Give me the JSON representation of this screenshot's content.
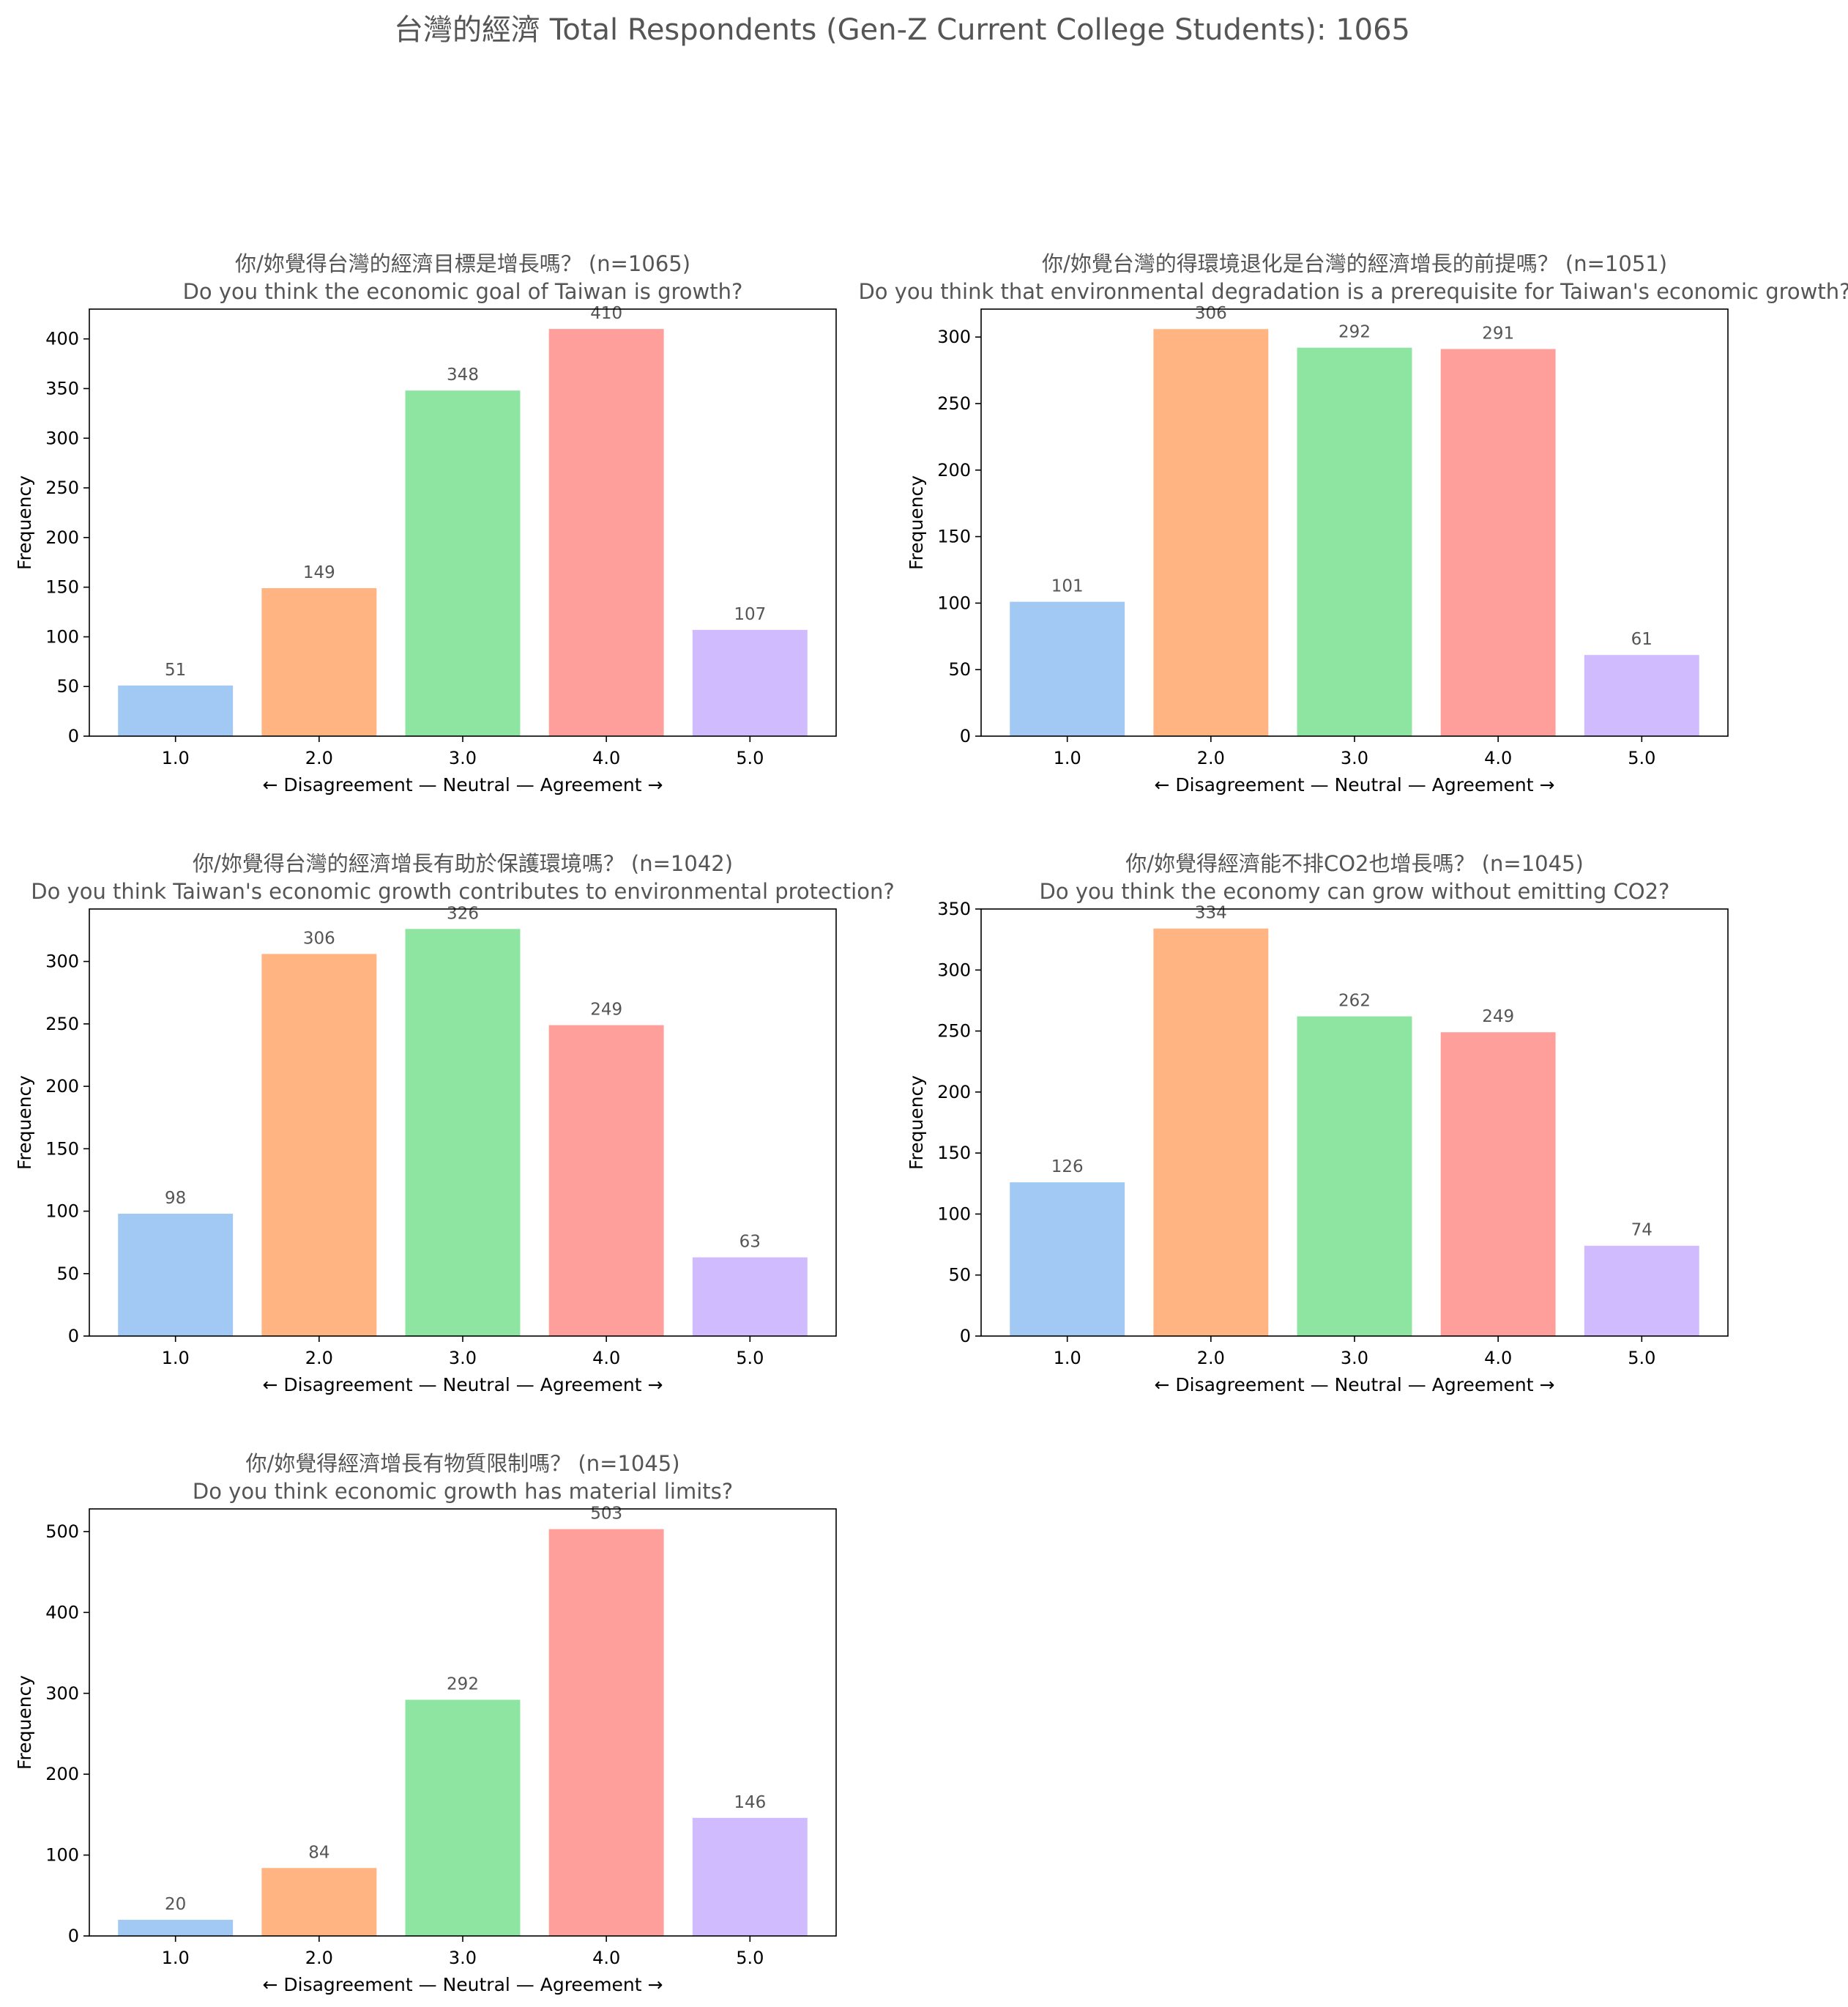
{
  "figure": {
    "suptitle": "台灣的經濟  Total Respondents (Gen-Z Current College Students): 1065"
  },
  "colors": [
    "#a1c9f4",
    "#ffb482",
    "#8de5a1",
    "#ff9f9b",
    "#d0bbff"
  ],
  "chart_data": [
    {
      "type": "bar",
      "title_line1": "你/妳覺得台灣的經濟目標是增長嗎？ (n=1065)",
      "title_line2": "Do you think the economic goal of Taiwan is growth?",
      "categories": [
        "1.0",
        "2.0",
        "3.0",
        "4.0",
        "5.0"
      ],
      "values": [
        51,
        149,
        348,
        410,
        107
      ],
      "xlabel": "← Disagreement — Neutral — Agreement →",
      "ylabel": "Frequency",
      "ylim": [
        0,
        430
      ],
      "yticks": [
        0,
        50,
        100,
        150,
        200,
        250,
        300,
        350,
        400
      ],
      "grid": false
    },
    {
      "type": "bar",
      "title_line1": "你/妳覺台灣的得環境退化是台灣的經濟增長的前提嗎？ (n=1051)",
      "title_line2": "Do you think that environmental degradation is a prerequisite for Taiwan's economic growth?",
      "categories": [
        "1.0",
        "2.0",
        "3.0",
        "4.0",
        "5.0"
      ],
      "values": [
        101,
        306,
        292,
        291,
        61
      ],
      "xlabel": "← Disagreement — Neutral — Agreement →",
      "ylabel": "Frequency",
      "ylim": [
        0,
        321
      ],
      "yticks": [
        0,
        50,
        100,
        150,
        200,
        250,
        300
      ],
      "grid": false
    },
    {
      "type": "bar",
      "title_line1": "你/妳覺得台灣的經濟增長有助於保護環境嗎？ (n=1042)",
      "title_line2": "Do you think Taiwan's economic growth contributes to environmental protection?",
      "categories": [
        "1.0",
        "2.0",
        "3.0",
        "4.0",
        "5.0"
      ],
      "values": [
        98,
        306,
        326,
        249,
        63
      ],
      "xlabel": "← Disagreement — Neutral — Agreement →",
      "ylabel": "Frequency",
      "ylim": [
        0,
        342
      ],
      "yticks": [
        0,
        50,
        100,
        150,
        200,
        250,
        300
      ],
      "grid": false
    },
    {
      "type": "bar",
      "title_line1": "你/妳覺得經濟能不排CO2也增長嗎？ (n=1045)",
      "title_line2": "Do you think the economy can grow without emitting CO2?",
      "categories": [
        "1.0",
        "2.0",
        "3.0",
        "4.0",
        "5.0"
      ],
      "values": [
        126,
        334,
        262,
        249,
        74
      ],
      "xlabel": "← Disagreement — Neutral — Agreement →",
      "ylabel": "Frequency",
      "ylim": [
        0,
        350
      ],
      "yticks": [
        0,
        50,
        100,
        150,
        200,
        250,
        300,
        350
      ],
      "grid": false
    },
    {
      "type": "bar",
      "title_line1": "你/妳覺得經濟增長有物質限制嗎？ (n=1045)",
      "title_line2": "Do you think economic growth has material limits?",
      "categories": [
        "1.0",
        "2.0",
        "3.0",
        "4.0",
        "5.0"
      ],
      "values": [
        20,
        84,
        292,
        503,
        146
      ],
      "xlabel": "← Disagreement — Neutral — Agreement →",
      "ylabel": "Frequency",
      "ylim": [
        0,
        528
      ],
      "yticks": [
        0,
        100,
        200,
        300,
        400,
        500
      ],
      "grid": false
    }
  ]
}
